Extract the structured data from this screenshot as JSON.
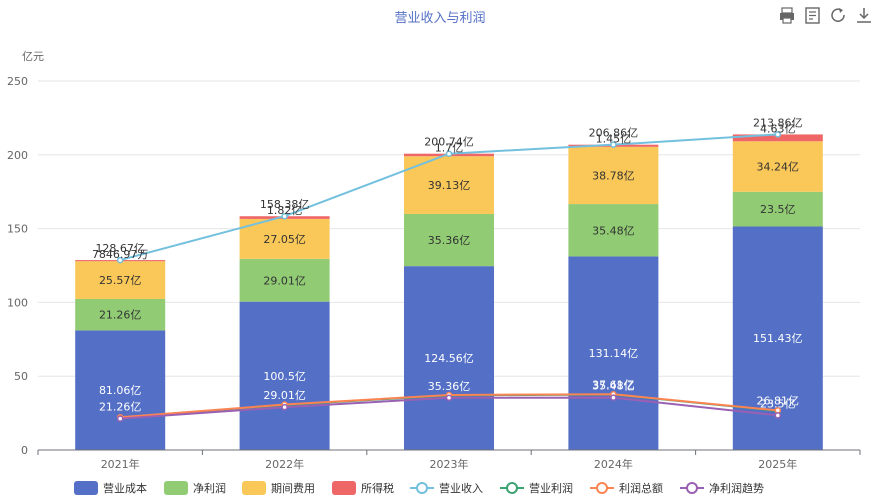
{
  "toolbar": {
    "icons": [
      "print-icon",
      "data-view-icon",
      "restore-icon",
      "download-icon"
    ]
  },
  "chart_data": {
    "type": "bar",
    "title": "营业收入与利润",
    "ylabel": "亿元",
    "ylim": [
      0,
      250
    ],
    "yticks": [
      0,
      50,
      100,
      150,
      200,
      250
    ],
    "categories": [
      "2021年",
      "2022年",
      "2023年",
      "2024年",
      "2025年"
    ],
    "stack_series": [
      {
        "name": "营业成本",
        "color": "#5470c6",
        "values": [
          81.06,
          100.5,
          124.56,
          131.14,
          151.43
        ],
        "labels": [
          "81.06亿",
          "100.5亿",
          "124.56亿",
          "131.14亿",
          "151.43亿"
        ]
      },
      {
        "name": "净利润",
        "color": "#91cc75",
        "values": [
          21.26,
          29.01,
          35.36,
          35.48,
          23.5
        ],
        "labels": [
          "21.26亿",
          "29.01亿",
          "35.36亿",
          "35.48亿",
          "23.5亿"
        ]
      },
      {
        "name": "期间费用",
        "color": "#fac858",
        "values": [
          25.57,
          27.05,
          39.13,
          38.78,
          34.24
        ],
        "labels": [
          "25.57亿",
          "27.05亿",
          "39.13亿",
          "38.78亿",
          "34.24亿"
        ]
      },
      {
        "name": "所得税",
        "color": "#ee6666",
        "values": [
          0.78,
          1.82,
          1.7,
          1.45,
          4.63
        ],
        "labels": [
          "7846.97万",
          "1.82亿",
          "1.7亿",
          "1.45亿",
          "4.63亿"
        ]
      }
    ],
    "line_series": [
      {
        "name": "营业收入",
        "color": "#73c0de",
        "values": [
          128.67,
          158.38,
          200.74,
          206.86,
          213.86
        ],
        "labels": [
          "128.67亿",
          "158.38亿",
          "200.74亿",
          "206.86亿",
          "213.86亿"
        ]
      },
      {
        "name": "营业利润",
        "color": "#3ba272",
        "values": [
          22.0,
          30.5,
          37.0,
          37.61,
          26.5
        ],
        "labels": [
          "",
          "",
          "",
          "37.61亿",
          ""
        ]
      },
      {
        "name": "利润总额",
        "color": "#fc8452",
        "values": [
          22.2,
          30.8,
          37.3,
          37.8,
          26.81
        ],
        "labels": [
          "",
          "",
          "",
          "",
          "26.81亿"
        ]
      },
      {
        "name": "净利润趋势",
        "color": "#9a60b4",
        "values": [
          21.26,
          29.01,
          35.36,
          35.48,
          23.5
        ],
        "labels": [
          "21.26亿",
          "29.01亿",
          "35.36亿",
          "35.48亿",
          "23.5亿"
        ]
      }
    ],
    "legend_position": "bottom",
    "grid": true
  }
}
